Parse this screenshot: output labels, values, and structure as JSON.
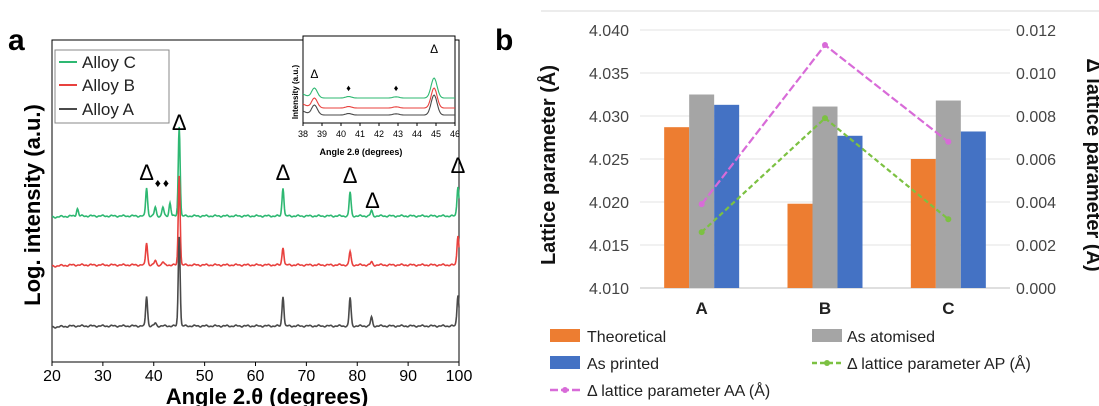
{
  "panel_labels": {
    "a": "a",
    "b": "b"
  },
  "chart_data": [
    {
      "type": "line",
      "xlabel": "Angle 2.θ (degrees)",
      "ylabel": "Log. intensity (a.u.)",
      "xlim": [
        20,
        100
      ],
      "x_ticks": [
        "20",
        "30",
        "40",
        "50",
        "60",
        "70",
        "80",
        "90",
        "100"
      ],
      "y_log_scale": true,
      "grid": false,
      "legend_position": "top-left",
      "colors": {
        "Alloy C": "#2eb872",
        "Alloy B": "#e8413e",
        "Alloy A": "#4a4a4a"
      },
      "series": [
        {
          "name": "Alloy C",
          "offset_level": 3,
          "peaks": [
            [
              25,
              0.25
            ],
            [
              38.6,
              0.95
            ],
            [
              40.3,
              0.3
            ],
            [
              41.8,
              0.3
            ],
            [
              43.2,
              0.45
            ],
            [
              45.0,
              3.0
            ],
            [
              65.4,
              0.95
            ],
            [
              78.6,
              0.8
            ],
            [
              82.8,
              0.18
            ],
            [
              99.8,
              1.0
            ]
          ]
        },
        {
          "name": "Alloy B",
          "offset_level": 2,
          "peaks": [
            [
              38.6,
              0.75
            ],
            [
              40.3,
              0.15
            ],
            [
              41.8,
              0.1
            ],
            [
              45.0,
              3.0
            ],
            [
              65.4,
              0.6
            ],
            [
              78.6,
              0.45
            ],
            [
              82.8,
              0.1
            ],
            [
              99.8,
              1.0
            ]
          ]
        },
        {
          "name": "Alloy A",
          "offset_level": 1,
          "peaks": [
            [
              38.6,
              1.0
            ],
            [
              40.3,
              0.1
            ],
            [
              45.0,
              3.0
            ],
            [
              65.4,
              1.0
            ],
            [
              78.6,
              0.95
            ],
            [
              82.8,
              0.3
            ],
            [
              99.8,
              1.05
            ]
          ]
        }
      ],
      "annotations": [
        {
          "symbol": "Δ",
          "x": 38.6
        },
        {
          "symbol": "♦",
          "x": 40.8
        },
        {
          "symbol": "♦",
          "x": 42.4
        },
        {
          "symbol": "Δ",
          "x": 45.0
        },
        {
          "symbol": "Δ",
          "x": 65.4
        },
        {
          "symbol": "Δ",
          "x": 78.6
        },
        {
          "symbol": "Δ",
          "x": 83.0
        },
        {
          "symbol": "Δ",
          "x": 99.8
        }
      ],
      "inset": {
        "xlabel": "Angle 2.θ (degrees)",
        "ylabel": "Intensity (a.u.)",
        "xlim": [
          38,
          46
        ],
        "x_ticks": [
          "38",
          "39",
          "40",
          "41",
          "42",
          "43",
          "44",
          "45",
          "46"
        ],
        "annotations": [
          {
            "symbol": "Δ",
            "x": 38.6
          },
          {
            "symbol": "♦",
            "x": 40.4
          },
          {
            "symbol": "♦",
            "x": 42.9
          },
          {
            "symbol": "Δ",
            "x": 44.9
          }
        ]
      }
    },
    {
      "type": "bar",
      "categories": [
        "A",
        "B",
        "C"
      ],
      "ylabel": "Lattice parameter (Å)",
      "ylim": [
        4.01,
        4.04
      ],
      "y_ticks": [
        "4.010",
        "4.015",
        "4.020",
        "4.025",
        "4.030",
        "4.035",
        "4.040"
      ],
      "y2label": "Δ lattice parameter (Å)",
      "y2lim": [
        0.0,
        0.012
      ],
      "y2_ticks": [
        "0.000",
        "0.002",
        "0.004",
        "0.006",
        "0.008",
        "0.010",
        "0.012"
      ],
      "grid": "horizontal",
      "legend_position": "bottom",
      "series": [
        {
          "name": "Theoretical",
          "color": "#ed7d31",
          "values": [
            4.0287,
            4.0198,
            4.025
          ]
        },
        {
          "name": "As atomised",
          "color": "#a5a5a5",
          "values": [
            4.0325,
            4.0311,
            4.0318
          ]
        },
        {
          "name": "As printed",
          "color": "#4472c4",
          "values": [
            4.0313,
            4.0277,
            4.0282
          ]
        }
      ],
      "line_series": [
        {
          "name": "Δ lattice parameter AP (Å)",
          "axis": "right",
          "color": "#7cc142",
          "dash": true,
          "values": [
            0.0026,
            0.0079,
            0.0032
          ]
        },
        {
          "name": "Δ lattice parameter AA (Å)",
          "axis": "right",
          "color": "#d86bd8",
          "dash": true,
          "values": [
            0.0039,
            0.0113,
            0.0068
          ]
        }
      ]
    }
  ]
}
